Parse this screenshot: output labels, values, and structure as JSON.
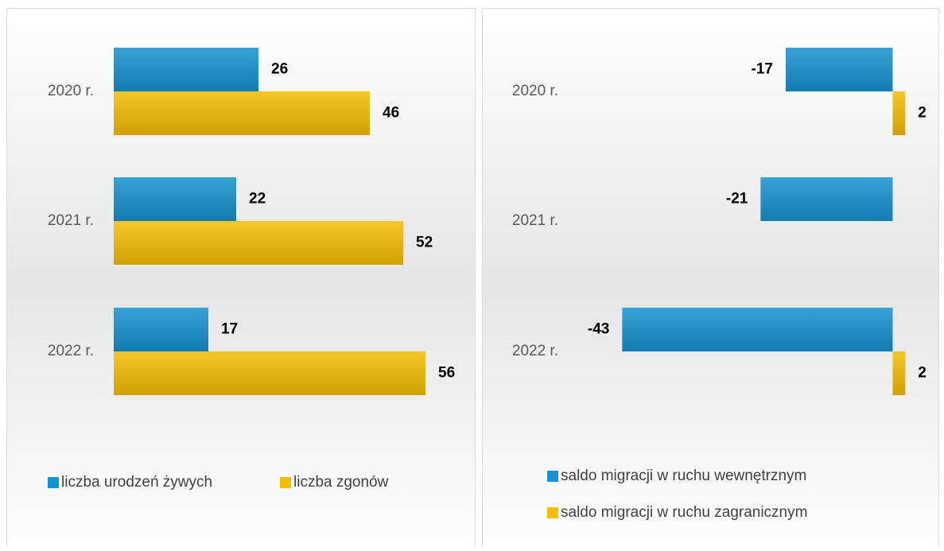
{
  "chart_data": [
    {
      "type": "bar",
      "orientation": "horizontal",
      "categories": [
        "2020 r.",
        "2021 r.",
        "2022 r."
      ],
      "series": [
        {
          "name": "liczba urodzeń żywych",
          "color": "#1592d0",
          "values": [
            26,
            22,
            17
          ]
        },
        {
          "name": "liczba zgonów",
          "color": "#f5bd00",
          "values": [
            46,
            52,
            56
          ]
        }
      ],
      "xlim": [
        0,
        60
      ],
      "legend": "bottom"
    },
    {
      "type": "bar",
      "orientation": "horizontal",
      "categories": [
        "2020 r.",
        "2021 r.",
        "2022 r."
      ],
      "series": [
        {
          "name": "saldo migracji w ruchu wewnętrznym",
          "color": "#1592d0",
          "values": [
            -17,
            -21,
            -43
          ]
        },
        {
          "name": "saldo migracji w ruchu zagranicznym",
          "color": "#f5bd00",
          "values": [
            2,
            null,
            2
          ]
        }
      ],
      "xlim": [
        -50,
        5
      ],
      "legend": "bottom"
    }
  ]
}
